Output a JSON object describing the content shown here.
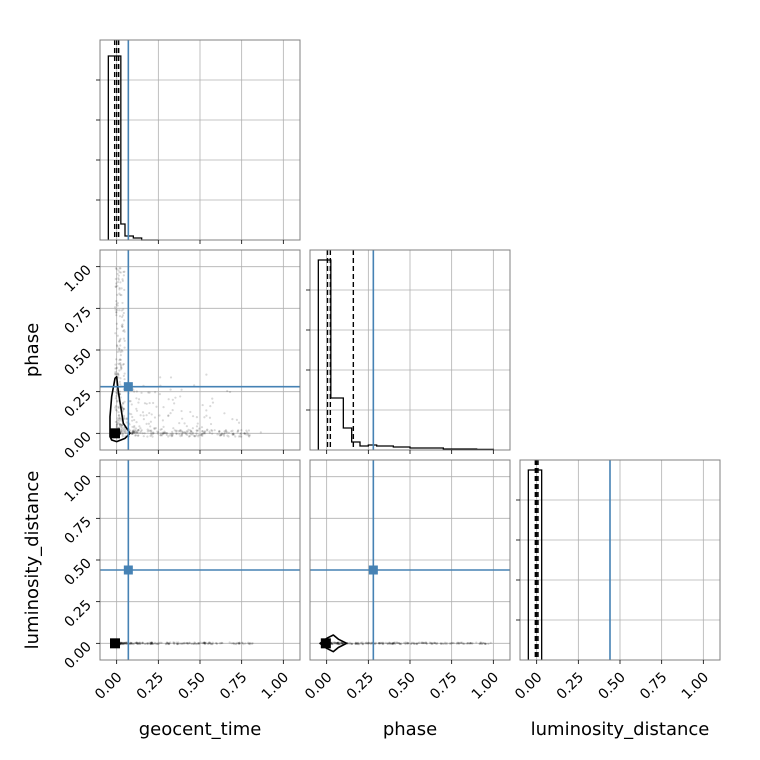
{
  "chart_data": {
    "type": "corner",
    "parameters": [
      "geocent_time",
      "phase",
      "luminosity_distance"
    ],
    "tick_labels": [
      "0.00",
      "0.25",
      "0.50",
      "0.75",
      "1.00"
    ],
    "tick_values": [
      0,
      0.25,
      0.5,
      0.75,
      1.0
    ],
    "axis_range": [
      -0.1,
      1.1
    ],
    "grid": true,
    "truths": {
      "geocent_time": 0.07,
      "phase": 0.28,
      "luminosity_distance": 0.44
    },
    "truth_color": "#4682b4",
    "histograms": {
      "geocent_time": {
        "bin_edges": [
          -0.05,
          0.0,
          0.025,
          0.05,
          0.1,
          0.15,
          0.25
        ],
        "heights": [
          0.92,
          0.92,
          0.08,
          0.02,
          0.01,
          0.0
        ],
        "quantiles": [
          -0.012,
          0.0,
          0.012
        ]
      },
      "phase": {
        "bin_edges": [
          -0.05,
          0.0,
          0.025,
          0.05,
          0.1,
          0.15,
          0.2,
          0.25,
          0.3,
          0.4,
          0.5,
          0.7,
          0.9,
          1.0
        ],
        "heights": [
          0.95,
          0.95,
          0.26,
          0.26,
          0.11,
          0.04,
          0.02,
          0.025,
          0.02,
          0.015,
          0.01,
          0.005,
          0.003
        ],
        "quantiles": [
          0.005,
          0.022,
          0.16
        ]
      },
      "luminosity_distance": {
        "bin_edges": [
          -0.05,
          0.0,
          0.03
        ],
        "heights": [
          0.95,
          0.95
        ],
        "quantiles": [
          -0.008,
          0.0,
          0.008
        ]
      }
    },
    "contours": {
      "phase_vs_geocent_time": {
        "outer": [
          [
            -0.04,
            -0.02
          ],
          [
            -0.04,
            0.1
          ],
          [
            -0.03,
            0.22
          ],
          [
            -0.01,
            0.33
          ],
          [
            0.0,
            0.34
          ],
          [
            0.01,
            0.25
          ],
          [
            0.04,
            0.06
          ],
          [
            0.08,
            0.0
          ],
          [
            0.05,
            -0.03
          ],
          [
            0.0,
            -0.05
          ],
          [
            -0.03,
            -0.04
          ]
        ],
        "inner": [
          [
            -0.02,
            -0.01
          ],
          [
            -0.01,
            0.02
          ],
          [
            0.01,
            0.02
          ],
          [
            0.02,
            0.0
          ],
          [
            0.01,
            -0.02
          ],
          [
            -0.01,
            -0.02
          ]
        ],
        "peak": [
          -0.01,
          0.0
        ]
      },
      "luminosity_distance_vs_phase": {
        "outer": [
          [
            -0.04,
            0.0
          ],
          [
            0.0,
            0.03
          ],
          [
            0.04,
            0.05
          ],
          [
            0.07,
            0.025
          ],
          [
            0.12,
            0.0
          ],
          [
            0.07,
            -0.025
          ],
          [
            0.04,
            -0.05
          ],
          [
            0.0,
            -0.03
          ]
        ],
        "peak": [
          -0.005,
          0.0
        ]
      },
      "luminosity_distance_vs_geocent_time": {
        "peak": [
          -0.01,
          0.0
        ]
      }
    }
  }
}
